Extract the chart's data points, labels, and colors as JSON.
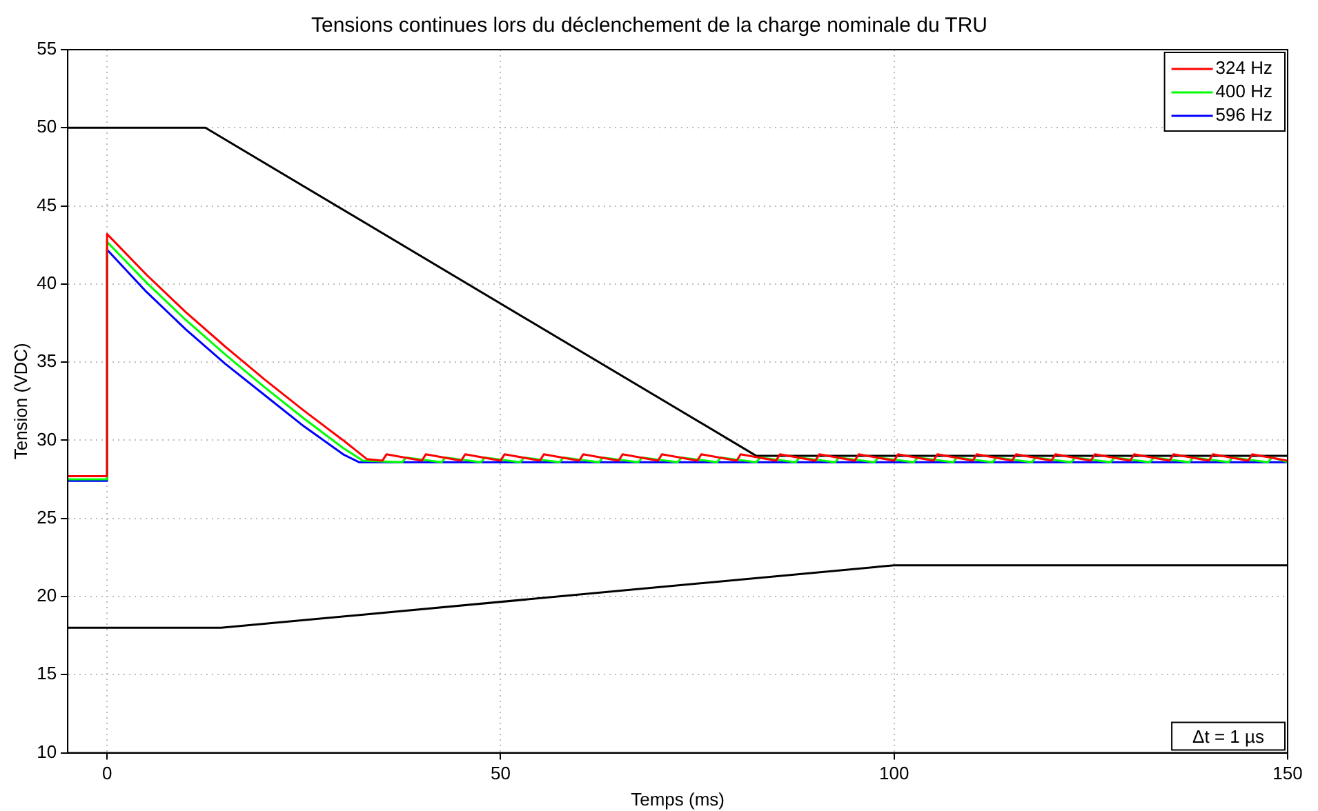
{
  "chart_data": {
    "type": "line",
    "title": "Tensions continues lors du déclenchement de la charge nominale du TRU",
    "xlabel": "Temps (ms)",
    "ylabel": "Tension (VDC)",
    "xlim": [
      -5,
      150
    ],
    "xticks": [
      0,
      50,
      100,
      150
    ],
    "ylim": [
      10,
      55
    ],
    "yticks": [
      10,
      15,
      20,
      25,
      30,
      35,
      40,
      45,
      50,
      55
    ],
    "grid": true,
    "legend": "top right",
    "marker": "none",
    "line_style": "solid",
    "annotations": [
      "Δt = 1 µs"
    ],
    "series": [
      {
        "name": "324 Hz",
        "color": "#ff0000",
        "x": [
          -5,
          0,
          0,
          5,
          10,
          15,
          20,
          25,
          30,
          33,
          35,
          35.5,
          40,
          40.5,
          45,
          45.5,
          50,
          50.5,
          55,
          55.5,
          60,
          60.5,
          65,
          65.5,
          70,
          70.5,
          75,
          75.5,
          80,
          80.5,
          85,
          85.5,
          90,
          90.5,
          95,
          95.5,
          100,
          100.5,
          105,
          105.5,
          110,
          110.5,
          115,
          115.5,
          120,
          120.5,
          125,
          125.5,
          130,
          130.5,
          135,
          135.5,
          140,
          140.5,
          145,
          145.5,
          150
        ],
        "values": [
          27.7,
          27.7,
          43.2,
          40.6,
          38.2,
          36.0,
          33.9,
          31.9,
          30.0,
          28.8,
          28.7,
          29.1,
          28.7,
          29.1,
          28.7,
          29.1,
          28.7,
          29.1,
          28.7,
          29.1,
          28.7,
          29.1,
          28.7,
          29.1,
          28.7,
          29.1,
          28.7,
          29.1,
          28.7,
          29.1,
          28.7,
          29.1,
          28.7,
          29.1,
          28.7,
          29.1,
          28.7,
          29.1,
          28.7,
          29.1,
          28.7,
          29.1,
          28.7,
          29.1,
          28.7,
          29.1,
          28.7,
          29.1,
          28.7,
          29.1,
          28.7,
          29.1,
          28.7,
          29.1,
          28.7,
          29.1,
          28.7
        ]
      },
      {
        "name": "400 Hz",
        "color": "#00ff00",
        "x": [
          -5,
          0,
          0,
          5,
          10,
          15,
          20,
          25,
          30,
          32.5,
          37.5,
          38,
          42.5,
          43,
          47.5,
          48,
          52.5,
          53,
          57.5,
          58,
          62.5,
          63,
          67.5,
          68,
          72.5,
          73,
          77.5,
          78,
          82.5,
          83,
          87.5,
          88,
          92.5,
          93,
          97.5,
          98,
          102.5,
          103,
          107.5,
          108,
          112.5,
          113,
          117.5,
          118,
          122.5,
          123,
          127.5,
          128,
          132.5,
          133,
          137.5,
          138,
          142.5,
          143,
          147.5,
          148,
          150
        ],
        "values": [
          27.5,
          27.5,
          42.7,
          40.1,
          37.7,
          35.5,
          33.4,
          31.4,
          29.5,
          28.7,
          28.6,
          28.9,
          28.6,
          28.9,
          28.6,
          28.9,
          28.6,
          28.9,
          28.6,
          28.9,
          28.6,
          28.9,
          28.6,
          28.9,
          28.6,
          28.9,
          28.6,
          28.9,
          28.6,
          28.9,
          28.6,
          28.9,
          28.6,
          28.9,
          28.6,
          28.9,
          28.6,
          28.9,
          28.6,
          28.9,
          28.6,
          28.9,
          28.6,
          28.9,
          28.6,
          28.9,
          28.6,
          28.9,
          28.6,
          28.9,
          28.6,
          28.9,
          28.6,
          28.9,
          28.6,
          28.9,
          28.6
        ]
      },
      {
        "name": "596 Hz",
        "color": "#0000ff",
        "x": [
          -5,
          0,
          0,
          5,
          10,
          15,
          20,
          25,
          30,
          32,
          150
        ],
        "values": [
          27.4,
          27.4,
          42.2,
          39.5,
          37.1,
          34.9,
          32.9,
          30.9,
          29.1,
          28.6,
          28.6
        ]
      },
      {
        "color": "#000000",
        "x": [
          -5,
          12.5,
          82.5,
          150
        ],
        "values": [
          50,
          50,
          29,
          29
        ]
      },
      {
        "color": "#000000",
        "x": [
          -5,
          14.5,
          100,
          150
        ],
        "values": [
          18,
          18,
          22,
          22
        ]
      }
    ]
  }
}
